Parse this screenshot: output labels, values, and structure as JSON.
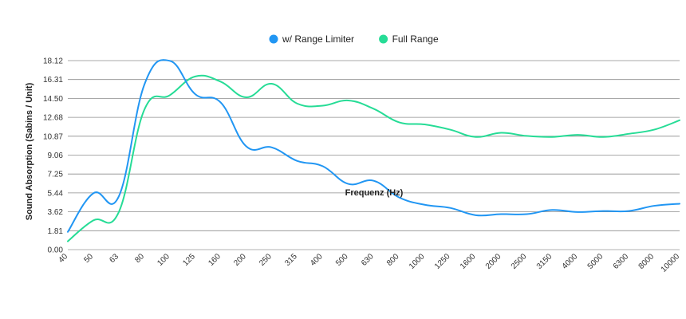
{
  "chart_data": {
    "type": "line",
    "title": "",
    "xlabel": "Frequenz (Hz)",
    "ylabel": "Sound Absorption (Sabins / Unit)",
    "categories": [
      "40",
      "50",
      "63",
      "80",
      "100",
      "125",
      "160",
      "200",
      "250",
      "315",
      "400",
      "500",
      "630",
      "800",
      "1000",
      "1250",
      "1600",
      "2000",
      "2500",
      "3150",
      "4000",
      "5000",
      "6300",
      "8000",
      "10000"
    ],
    "y_ticks": [
      "0.00",
      "1.81",
      "3.62",
      "5.44",
      "7.25",
      "9.06",
      "10.87",
      "12.68",
      "14.50",
      "16.31",
      "18.12"
    ],
    "ylim": [
      0,
      18.12
    ],
    "grid": true,
    "legend_position": "top-center",
    "series": [
      {
        "name": "w/ Range Limiter",
        "color": "#2196f3",
        "values": [
          1.7,
          5.4,
          5.1,
          15.8,
          18.1,
          14.9,
          14.1,
          9.9,
          9.8,
          8.5,
          8.0,
          6.3,
          6.6,
          5.0,
          4.3,
          4.0,
          3.3,
          3.4,
          3.4,
          3.8,
          3.6,
          3.7,
          3.7,
          4.2,
          4.4
        ]
      },
      {
        "name": "Full Range",
        "color": "#26dc96",
        "values": [
          0.8,
          2.8,
          3.6,
          13.4,
          14.8,
          16.6,
          16.1,
          14.6,
          15.9,
          14.0,
          13.8,
          14.3,
          13.5,
          12.2,
          12.0,
          11.5,
          10.8,
          11.2,
          10.9,
          10.8,
          11.0,
          10.8,
          11.1,
          11.5,
          12.4
        ]
      }
    ]
  }
}
